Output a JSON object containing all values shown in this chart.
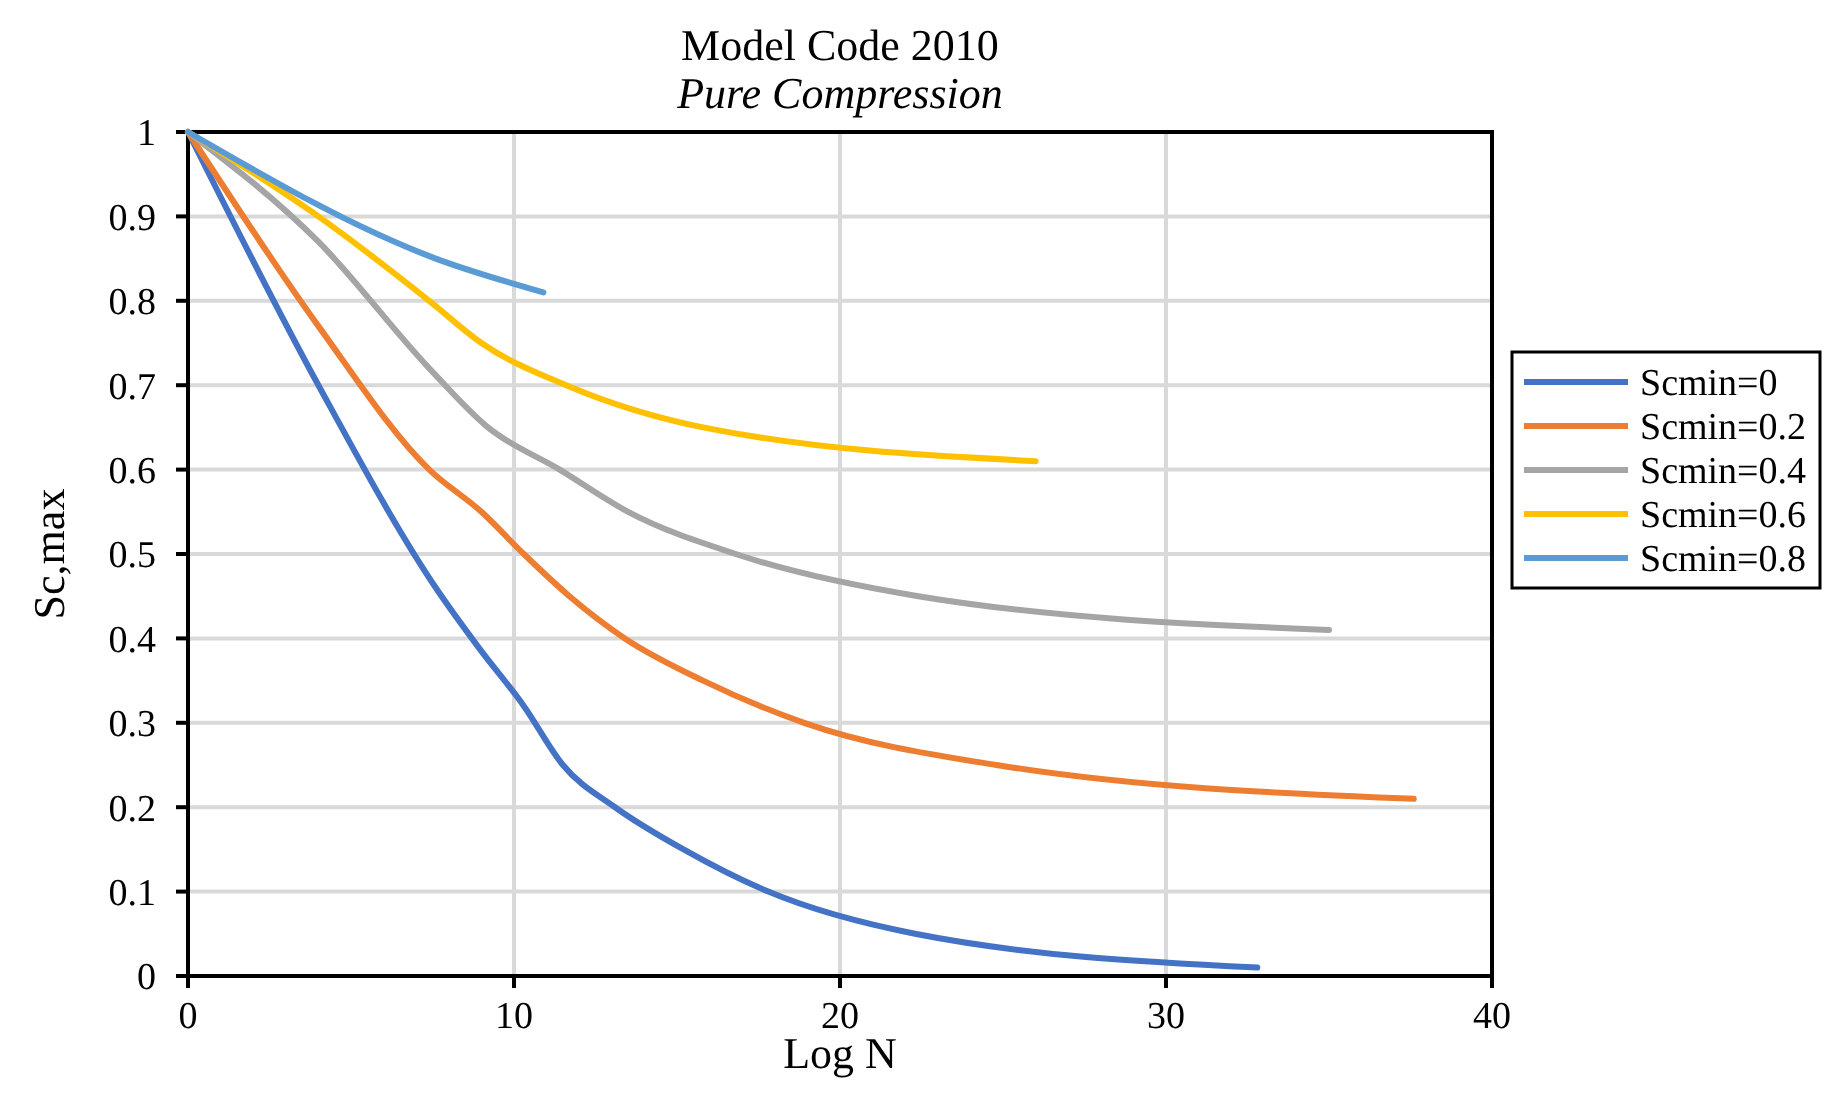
{
  "chart_data": {
    "type": "line",
    "title": "Model Code 2010",
    "subtitle": "Pure Compression",
    "xlabel": "Log N",
    "ylabel": "Sc,max",
    "xlim": [
      0,
      40
    ],
    "xticks": [
      0,
      10,
      20,
      30,
      40
    ],
    "ylim": [
      0,
      1
    ],
    "yticks": [
      0,
      0.1,
      0.2,
      0.3,
      0.4,
      0.5,
      0.6,
      0.7,
      0.8,
      0.9,
      1
    ],
    "grid": true,
    "legend": "right",
    "marker": "none",
    "line_style": "solid",
    "series": [
      {
        "name": "Scmin=0",
        "color": "#4472c4",
        "x": [
          0,
          4,
          7.6,
          8.9,
          10.3,
          11.5,
          13.1,
          15.2,
          17.8,
          22.3,
          32.8
        ],
        "values": [
          1,
          0.7,
          0.46,
          0.39,
          0.32,
          0.25,
          0.2,
          0.15,
          0.1,
          0.05,
          0.01
        ]
      },
      {
        "name": "Scmin=0.2",
        "color": "#ed7d31",
        "x": [
          0,
          4,
          7.4,
          9,
          10.3,
          11.7,
          13.4,
          15.8,
          18.9,
          24.8,
          37.6
        ],
        "values": [
          1,
          0.77,
          0.6,
          0.55,
          0.5,
          0.45,
          0.4,
          0.35,
          0.3,
          0.25,
          0.21
        ]
      },
      {
        "name": "Scmin=0.4",
        "color": "#a5a5a5",
        "x": [
          0,
          4,
          7.4,
          9.2,
          11.4,
          13.5,
          16.8,
          22.4,
          35
        ],
        "values": [
          1,
          0.87,
          0.72,
          0.65,
          0.6,
          0.55,
          0.5,
          0.45,
          0.41
        ]
      },
      {
        "name": "Scmin=0.6",
        "color": "#ffc000",
        "x": [
          0,
          4,
          7.4,
          9,
          11.6,
          15.8,
          26
        ],
        "values": [
          1,
          0.9,
          0.8,
          0.75,
          0.7,
          0.65,
          0.61
        ]
      },
      {
        "name": "Scmin=0.8",
        "color": "#5b9bd5",
        "x": [
          0,
          7.6,
          10.9
        ],
        "values": [
          1,
          0.85,
          0.81
        ]
      }
    ]
  }
}
